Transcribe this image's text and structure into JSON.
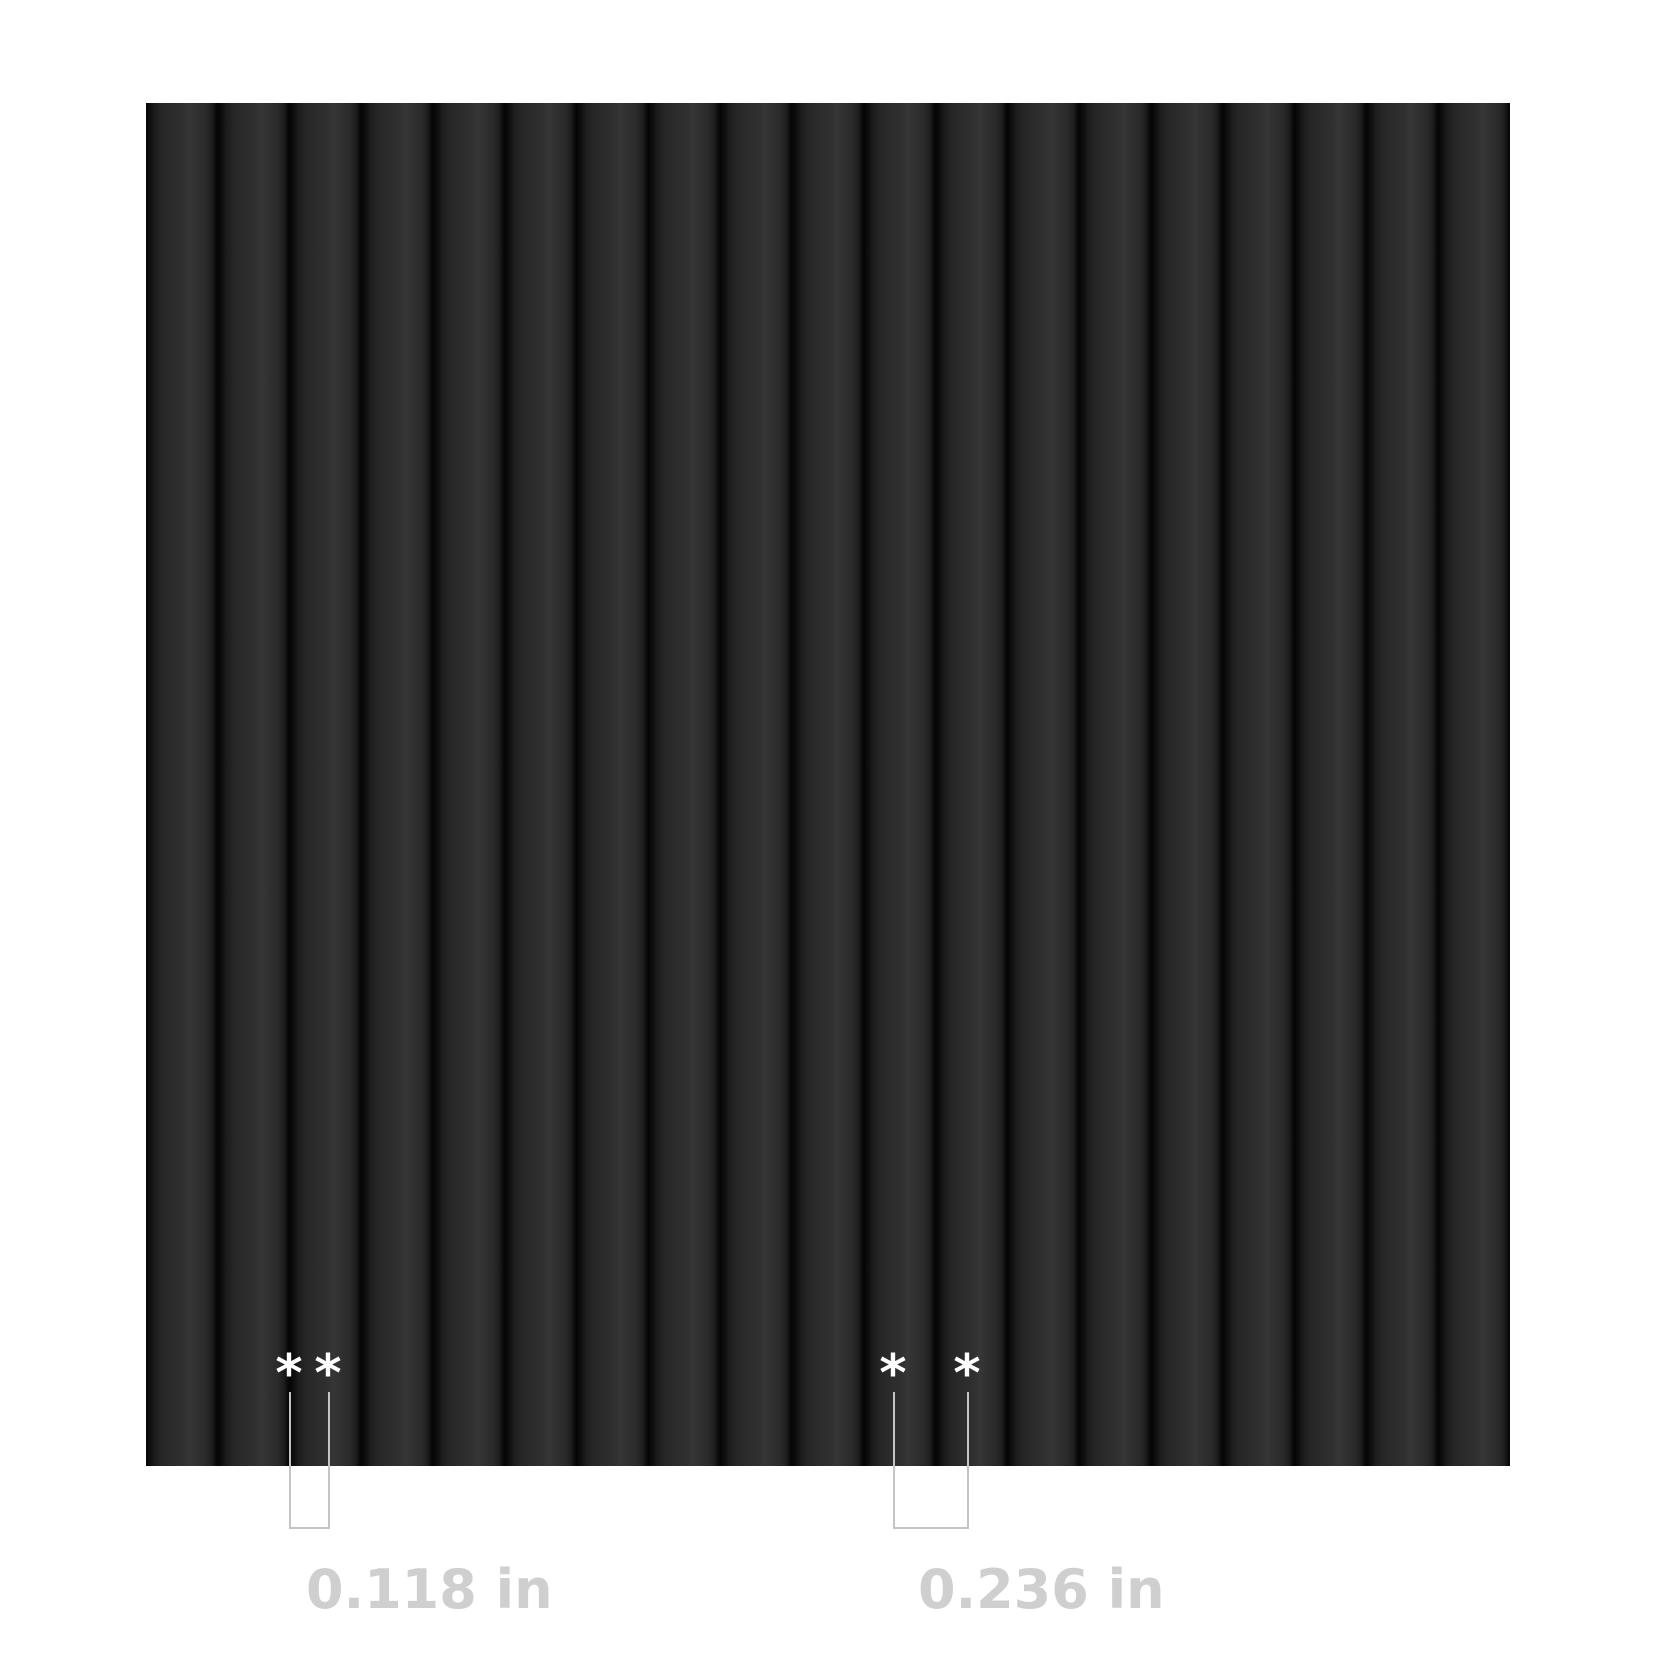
{
  "product": {
    "surface_color": "#2a2a2a",
    "rib_count": 19
  },
  "measurements": [
    {
      "marker": "*",
      "label": "0.118 in"
    },
    {
      "marker": "*",
      "label": "0.236 in"
    }
  ],
  "colors": {
    "marker": "#ffffff",
    "bracket": "#c4c4c4",
    "label": "#cfcfcf"
  }
}
